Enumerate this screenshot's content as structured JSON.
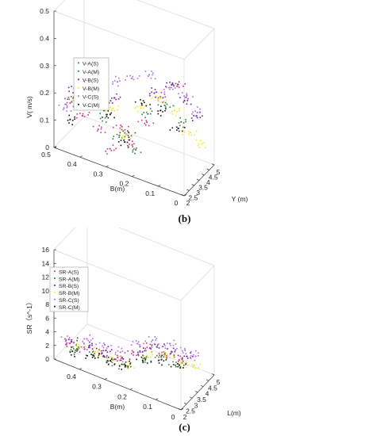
{
  "figure": {
    "panels": [
      {
        "caption": "(b)"
      },
      {
        "caption": "(c)"
      }
    ]
  },
  "chart_data": [
    {
      "type": "scatter",
      "dimensions": "3d",
      "caption": "(b)",
      "zlabel": "V( m/s)",
      "ylabel": "Y (m)",
      "xlabel": "B(m)",
      "x_ticks": [
        "0",
        "0.1",
        "0.2",
        "0.3",
        "0.4",
        "0.5"
      ],
      "y_ticks": [
        "2",
        "2.5",
        "3",
        "3.5",
        "4",
        "4.5",
        "5"
      ],
      "z_ticks": [
        "0",
        "0.1",
        "0.2",
        "0.3",
        "0.4",
        "0.5"
      ],
      "xlim": [
        0,
        0.5
      ],
      "ylim": [
        2,
        5
      ],
      "zlim": [
        0,
        0.5
      ],
      "legend": [
        "V-A(S)",
        "V-A(M)",
        "V-B(S)",
        "V-B(M)",
        "V-C(S)",
        "V-C(M)"
      ],
      "legend_position": "top-left",
      "grid": false,
      "series": [
        {
          "name": "V-A(S)",
          "color": "#d02f8a",
          "points": [
            [
              0.45,
              2.1,
              0.18
            ],
            [
              0.42,
              2.3,
              0.22
            ],
            [
              0.38,
              2.5,
              0.25
            ],
            [
              0.33,
              2.7,
              0.2
            ],
            [
              0.28,
              2.9,
              0.12
            ],
            [
              0.25,
              3.1,
              0.06
            ],
            [
              0.4,
              2.2,
              0.15
            ],
            [
              0.35,
              2.6,
              0.1
            ],
            [
              0.3,
              2.4,
              0.05
            ],
            [
              0.2,
              3.3,
              0.15
            ],
            [
              0.15,
              3.6,
              0.25
            ],
            [
              0.1,
              3.9,
              0.3
            ]
          ]
        },
        {
          "name": "V-A(M)",
          "color": "#2e7d32",
          "points": [
            [
              0.44,
              2.2,
              0.2
            ],
            [
              0.39,
              2.45,
              0.18
            ],
            [
              0.34,
              2.75,
              0.14
            ],
            [
              0.29,
              3.0,
              0.08
            ],
            [
              0.24,
              3.2,
              0.04
            ],
            [
              0.2,
              3.45,
              0.18
            ],
            [
              0.14,
              3.75,
              0.22
            ],
            [
              0.09,
              4.1,
              0.16
            ]
          ]
        },
        {
          "name": "V-B(S)",
          "color": "#6a1b9a",
          "points": [
            [
              0.43,
              2.15,
              0.24
            ],
            [
              0.36,
              2.55,
              0.28
            ],
            [
              0.3,
              2.85,
              0.22
            ],
            [
              0.26,
              3.05,
              0.1
            ],
            [
              0.18,
              3.5,
              0.26
            ],
            [
              0.12,
              3.85,
              0.3
            ],
            [
              0.08,
              4.2,
              0.24
            ],
            [
              0.05,
              4.5,
              0.18
            ]
          ]
        },
        {
          "name": "V-B(M)",
          "color": "#f2ea1a",
          "points": [
            [
              0.41,
              2.25,
              0.2
            ],
            [
              0.37,
              2.5,
              0.26
            ],
            [
              0.31,
              2.8,
              0.18
            ],
            [
              0.27,
              3.0,
              0.09
            ],
            [
              0.22,
              3.3,
              0.2
            ],
            [
              0.16,
              3.6,
              0.24
            ],
            [
              0.11,
              3.95,
              0.2
            ],
            [
              0.07,
              4.3,
              0.12
            ],
            [
              0.04,
              4.6,
              0.08
            ]
          ]
        },
        {
          "name": "V-C(S)",
          "color": "#b06ad9",
          "points": [
            [
              0.46,
              2.05,
              0.16
            ],
            [
              0.4,
              2.35,
              0.24
            ],
            [
              0.35,
              2.65,
              0.3
            ],
            [
              0.3,
              2.95,
              0.28
            ],
            [
              0.25,
              3.25,
              0.3
            ],
            [
              0.19,
              3.55,
              0.32
            ],
            [
              0.13,
              3.85,
              0.28
            ],
            [
              0.08,
              4.15,
              0.26
            ],
            [
              0.05,
              4.45,
              0.2
            ]
          ]
        },
        {
          "name": "V-C(M)",
          "color": "#111111",
          "points": [
            [
              0.44,
              2.12,
              0.12
            ],
            [
              0.38,
              2.42,
              0.2
            ],
            [
              0.32,
              2.72,
              0.16
            ],
            [
              0.27,
              2.98,
              0.07
            ],
            [
              0.21,
              3.28,
              0.22
            ],
            [
              0.15,
              3.58,
              0.2
            ],
            [
              0.1,
              3.88,
              0.14
            ]
          ]
        }
      ]
    },
    {
      "type": "scatter",
      "dimensions": "3d",
      "caption": "(c)",
      "zlabel": "SR（s^-1）",
      "ylabel": "L(m)",
      "xlabel": "B(m)",
      "x_ticks": [
        "0",
        "0.1",
        "0.2",
        "0.3",
        "0.4"
      ],
      "y_ticks": [
        "2",
        "2.5",
        "3",
        "3.5",
        "4",
        "4.5",
        "5"
      ],
      "z_ticks": [
        "0",
        "2",
        "4",
        "6",
        "8",
        "10",
        "12",
        "14",
        "16"
      ],
      "xlim": [
        0,
        0.5
      ],
      "ylim": [
        2,
        5
      ],
      "zlim": [
        0,
        16
      ],
      "legend": [
        "SR-A(S)",
        "SR-A(M)",
        "SR-B(S)",
        "SR-B(M)",
        "SR-C(S)",
        "SR-C(M)"
      ],
      "legend_position": "top-left",
      "grid": false,
      "series": [
        {
          "name": "SR-A(S)",
          "color": "#d02f8a",
          "points": [
            [
              0.45,
              2.1,
              3.0
            ],
            [
              0.4,
              2.4,
              2.5
            ],
            [
              0.35,
              2.7,
              2.0
            ],
            [
              0.3,
              3.0,
              1.2
            ],
            [
              0.25,
              3.3,
              2.5
            ],
            [
              0.2,
              3.6,
              3.5
            ],
            [
              0.15,
              3.9,
              2.8
            ],
            [
              0.1,
              4.2,
              2.2
            ]
          ]
        },
        {
          "name": "SR-A(M)",
          "color": "#2e7d32",
          "points": [
            [
              0.43,
              2.2,
              2.2
            ],
            [
              0.37,
              2.55,
              1.8
            ],
            [
              0.32,
              2.85,
              1.0
            ],
            [
              0.27,
              3.1,
              0.6
            ],
            [
              0.21,
              3.45,
              2.0
            ],
            [
              0.16,
              3.75,
              2.6
            ],
            [
              0.11,
              4.05,
              1.6
            ]
          ]
        },
        {
          "name": "SR-B(S)",
          "color": "#6a1b9a",
          "points": [
            [
              0.44,
              2.15,
              3.4
            ],
            [
              0.38,
              2.5,
              3.0
            ],
            [
              0.33,
              2.8,
              2.4
            ],
            [
              0.28,
              3.05,
              1.5
            ],
            [
              0.22,
              3.4,
              3.0
            ],
            [
              0.17,
              3.7,
              4.0
            ],
            [
              0.12,
              4.0,
              3.4
            ],
            [
              0.08,
              4.35,
              2.6
            ]
          ]
        },
        {
          "name": "SR-B(M)",
          "color": "#f2ea1a",
          "points": [
            [
              0.42,
              2.25,
              2.8
            ],
            [
              0.36,
              2.6,
              2.2
            ],
            [
              0.31,
              2.9,
              1.4
            ],
            [
              0.26,
              3.15,
              0.8
            ],
            [
              0.2,
              3.5,
              2.4
            ],
            [
              0.14,
              3.8,
              3.0
            ],
            [
              0.09,
              4.1,
              2.0
            ],
            [
              0.06,
              4.45,
              1.4
            ]
          ]
        },
        {
          "name": "SR-C(S)",
          "color": "#b06ad9",
          "points": [
            [
              0.45,
              2.05,
              3.6
            ],
            [
              0.39,
              2.45,
              3.8
            ],
            [
              0.34,
              2.75,
              3.2
            ],
            [
              0.29,
              3.0,
              2.6
            ],
            [
              0.23,
              3.35,
              4.2
            ],
            [
              0.18,
              3.65,
              4.8
            ],
            [
              0.13,
              3.95,
              4.4
            ],
            [
              0.09,
              4.25,
              3.6
            ],
            [
              0.06,
              4.55,
              2.8
            ]
          ]
        },
        {
          "name": "SR-C(M)",
          "color": "#111111",
          "points": [
            [
              0.43,
              2.12,
              2.0
            ],
            [
              0.37,
              2.48,
              1.6
            ],
            [
              0.32,
              2.78,
              1.2
            ],
            [
              0.27,
              3.08,
              0.8
            ],
            [
              0.21,
              3.42,
              1.8
            ],
            [
              0.15,
              3.72,
              2.2
            ],
            [
              0.1,
              4.02,
              1.6
            ]
          ]
        }
      ]
    }
  ]
}
